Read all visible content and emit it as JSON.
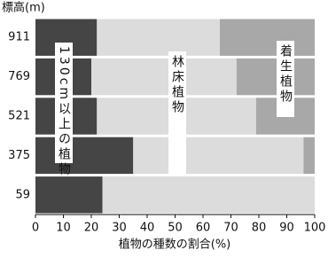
{
  "chart_data": {
    "type": "stacked-barh",
    "y_axis_label": "標高(m)",
    "x_axis_label": "植物の種数の割合(%)",
    "categories": [
      "911",
      "769",
      "521",
      "375",
      "59"
    ],
    "series": [
      {
        "name": "130cm以上の植物",
        "color": "#454545",
        "values": [
          22,
          20,
          22,
          35,
          24
        ]
      },
      {
        "name": "林床植物",
        "color": "#dcdcdc",
        "values": [
          44,
          52,
          57,
          61,
          76
        ]
      },
      {
        "name": "着生植物",
        "color": "#a8a8a8",
        "values": [
          34,
          28,
          21,
          4,
          0
        ]
      }
    ],
    "xlim": [
      0,
      100
    ],
    "xticks": [
      0,
      10,
      20,
      30,
      40,
      50,
      60,
      70,
      80,
      90,
      100
    ]
  }
}
